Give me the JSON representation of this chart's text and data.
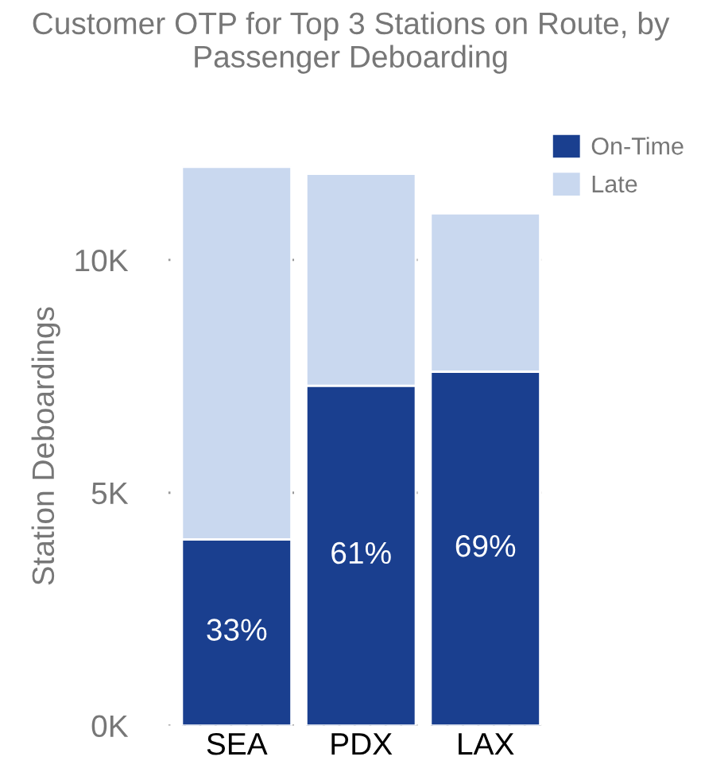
{
  "chart_data": {
    "type": "bar",
    "title": "Customer OTP for Top 3 Stations on Route, by Passenger Deboarding",
    "ylabel": "Station Deboardings",
    "categories": [
      "SEA",
      "PDX",
      "LAX"
    ],
    "stacked": true,
    "series": [
      {
        "name": "On-Time",
        "color": "#1a3f8f",
        "values": [
          4.0,
          7.3,
          7.6
        ]
      },
      {
        "name": "Late",
        "color": "#c9d8ef",
        "values": [
          8.0,
          4.55,
          3.4
        ]
      }
    ],
    "annotations": [
      "33%",
      "61%",
      "69%"
    ],
    "ylim": [
      0,
      12.0
    ],
    "yticks": [
      {
        "value": 0,
        "label": "0K"
      },
      {
        "value": 5,
        "label": "5K"
      },
      {
        "value": 10,
        "label": "10K"
      }
    ],
    "grid": "y",
    "legend": "top right"
  }
}
